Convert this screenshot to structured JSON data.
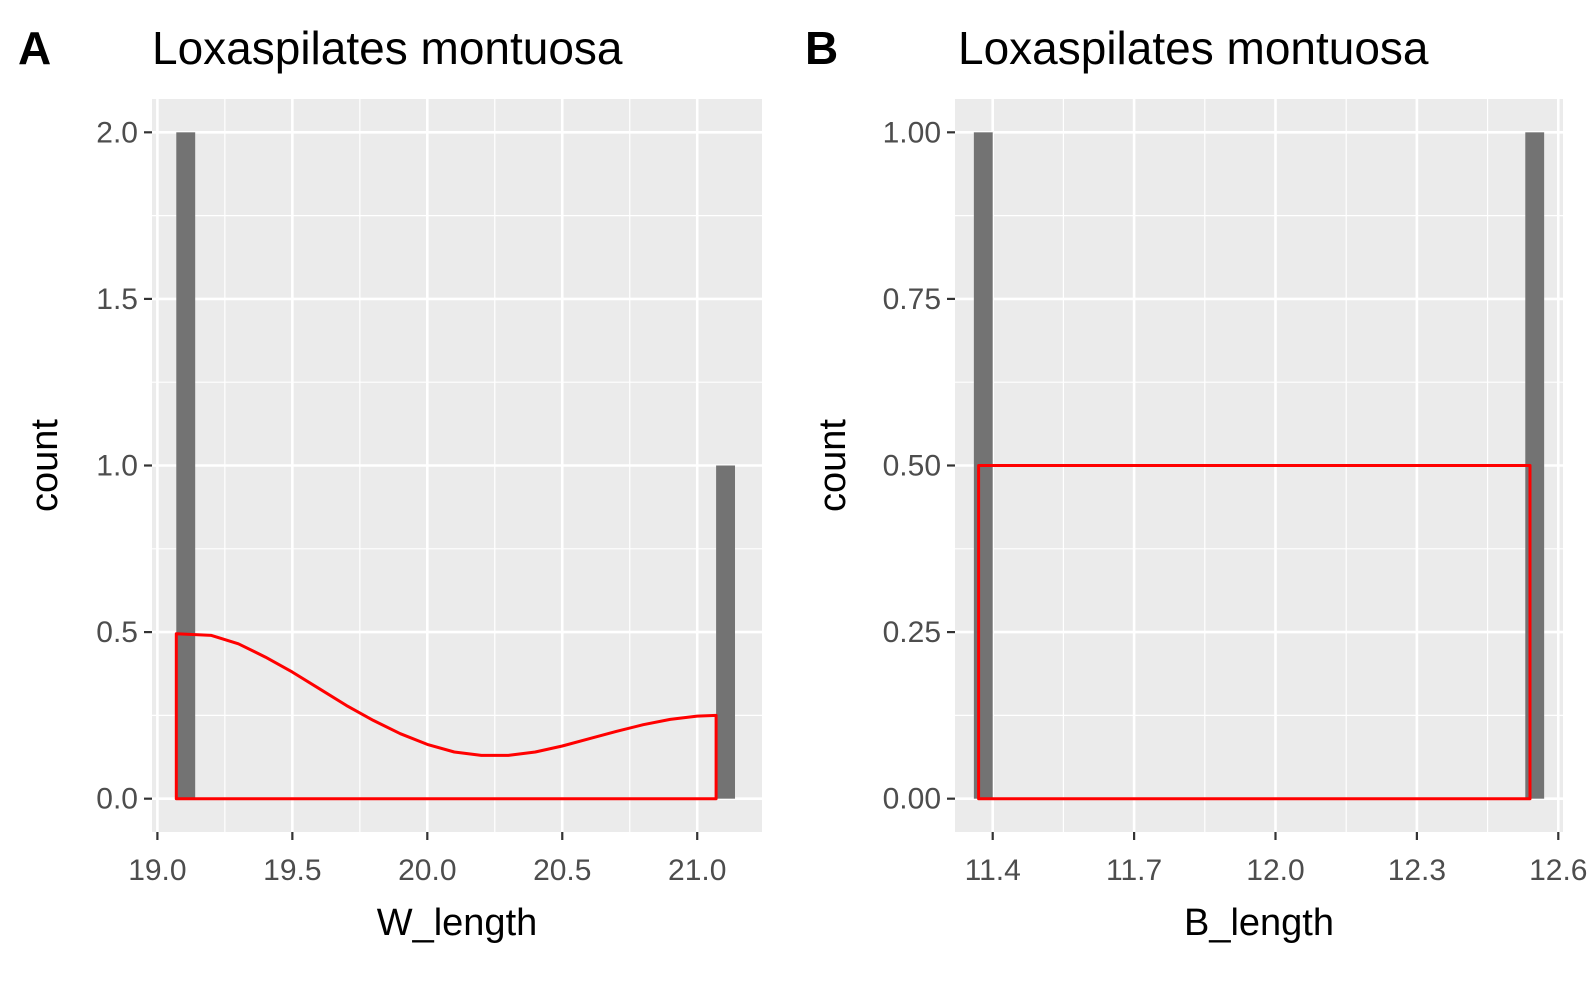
{
  "chart_data": [
    {
      "tag": "A",
      "type": "bar",
      "title": "Loxaspilates montuosa",
      "xlabel": "W_length",
      "ylabel": "count",
      "xlim": [
        18.98,
        21.24
      ],
      "ylim": [
        -0.1,
        2.1
      ],
      "xticks": [
        19.0,
        19.5,
        20.0,
        20.5,
        21.0
      ],
      "xtick_labels": [
        "19.0",
        "19.5",
        "20.0",
        "20.5",
        "21.0"
      ],
      "yticks": [
        0.0,
        0.5,
        1.0,
        1.5,
        2.0
      ],
      "ytick_labels": [
        "0.0",
        "0.5",
        "1.0",
        "1.5",
        "2.0"
      ],
      "bars": [
        {
          "xmin": 19.07,
          "xmax": 19.14,
          "count": 2
        },
        {
          "xmin": 21.07,
          "xmax": 21.14,
          "count": 1
        }
      ],
      "density_curve": {
        "x": [
          19.07,
          19.2,
          19.3,
          19.4,
          19.5,
          19.6,
          19.7,
          19.8,
          19.9,
          20.0,
          20.1,
          20.2,
          20.3,
          20.4,
          20.5,
          20.6,
          20.7,
          20.8,
          20.9,
          21.0,
          21.07
        ],
        "y": [
          0.495,
          0.49,
          0.465,
          0.425,
          0.38,
          0.33,
          0.28,
          0.235,
          0.195,
          0.163,
          0.14,
          0.13,
          0.13,
          0.14,
          0.158,
          0.18,
          0.202,
          0.222,
          0.238,
          0.248,
          0.25
        ]
      },
      "colors": {
        "bar": "#737373",
        "density": "#ff0000",
        "panel": "#ebebeb",
        "grid": "#ffffff"
      }
    },
    {
      "tag": "B",
      "type": "bar",
      "title": "Loxaspilates montuosa",
      "xlabel": "B_length",
      "ylabel": "count",
      "xlim": [
        11.32,
        12.61
      ],
      "ylim": [
        -0.05,
        1.05
      ],
      "xticks": [
        11.4,
        11.7,
        12.0,
        12.3,
        12.6
      ],
      "xtick_labels": [
        "11.4",
        "11.7",
        "12.0",
        "12.3",
        "12.6"
      ],
      "yticks": [
        0.0,
        0.25,
        0.5,
        0.75,
        1.0
      ],
      "ytick_labels": [
        "0.00",
        "0.25",
        "0.50",
        "0.75",
        "1.00"
      ],
      "bars": [
        {
          "xmin": 11.36,
          "xmax": 11.4,
          "count": 1
        },
        {
          "xmin": 12.53,
          "xmax": 12.57,
          "count": 1
        }
      ],
      "density_curve": {
        "x": [
          11.37,
          12.54
        ],
        "y": [
          0.5,
          0.5
        ]
      },
      "colors": {
        "bar": "#737373",
        "density": "#ff0000",
        "panel": "#ebebeb",
        "grid": "#ffffff"
      }
    }
  ]
}
